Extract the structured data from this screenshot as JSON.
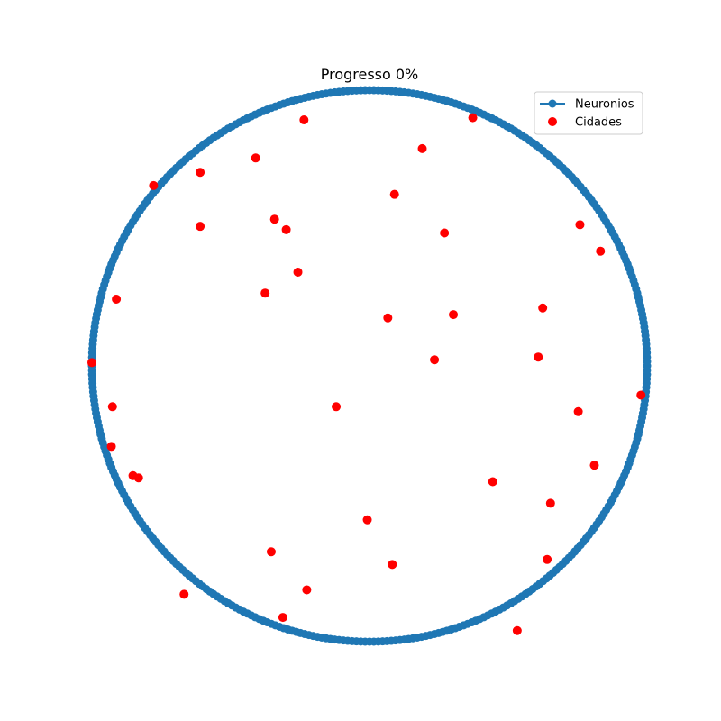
{
  "chart_data": {
    "type": "scatter",
    "title": "Progresso 0%",
    "xlabel": "",
    "ylabel": "",
    "axes_visible": false,
    "grid": false,
    "legend_placement": "top-right",
    "xlim": [
      0,
      1
    ],
    "ylim": [
      0,
      1
    ],
    "series": [
      {
        "name": "Neuronios",
        "kind": "line-with-markers",
        "color": "#1f77b4",
        "shape": "circle",
        "center": [
          0.5,
          0.5
        ],
        "radius": 0.5,
        "n_points": 400
      },
      {
        "name": "Cidades",
        "kind": "scatter",
        "color": "#ff0000",
        "points": [
          [
            0.382,
            0.946
          ],
          [
            0.686,
            0.95
          ],
          [
            0.595,
            0.894
          ],
          [
            0.295,
            0.877
          ],
          [
            0.195,
            0.851
          ],
          [
            0.111,
            0.827
          ],
          [
            0.545,
            0.811
          ],
          [
            0.329,
            0.766
          ],
          [
            0.35,
            0.747
          ],
          [
            0.195,
            0.753
          ],
          [
            0.635,
            0.741
          ],
          [
            0.879,
            0.756
          ],
          [
            0.916,
            0.708
          ],
          [
            0.371,
            0.67
          ],
          [
            0.312,
            0.632
          ],
          [
            0.044,
            0.621
          ],
          [
            0.812,
            0.605
          ],
          [
            0.651,
            0.593
          ],
          [
            0.533,
            0.587
          ],
          [
            0.804,
            0.516
          ],
          [
            0.617,
            0.511
          ],
          [
            0.0,
            0.506
          ],
          [
            0.989,
            0.447
          ],
          [
            0.44,
            0.426
          ],
          [
            0.037,
            0.426
          ],
          [
            0.876,
            0.417
          ],
          [
            0.035,
            0.354
          ],
          [
            0.905,
            0.32
          ],
          [
            0.074,
            0.301
          ],
          [
            0.084,
            0.297
          ],
          [
            0.722,
            0.29
          ],
          [
            0.826,
            0.251
          ],
          [
            0.496,
            0.221
          ],
          [
            0.323,
            0.163
          ],
          [
            0.541,
            0.14
          ],
          [
            0.82,
            0.149
          ],
          [
            0.387,
            0.094
          ],
          [
            0.166,
            0.086
          ],
          [
            0.344,
            0.044
          ],
          [
            0.766,
            0.02
          ]
        ]
      }
    ]
  }
}
